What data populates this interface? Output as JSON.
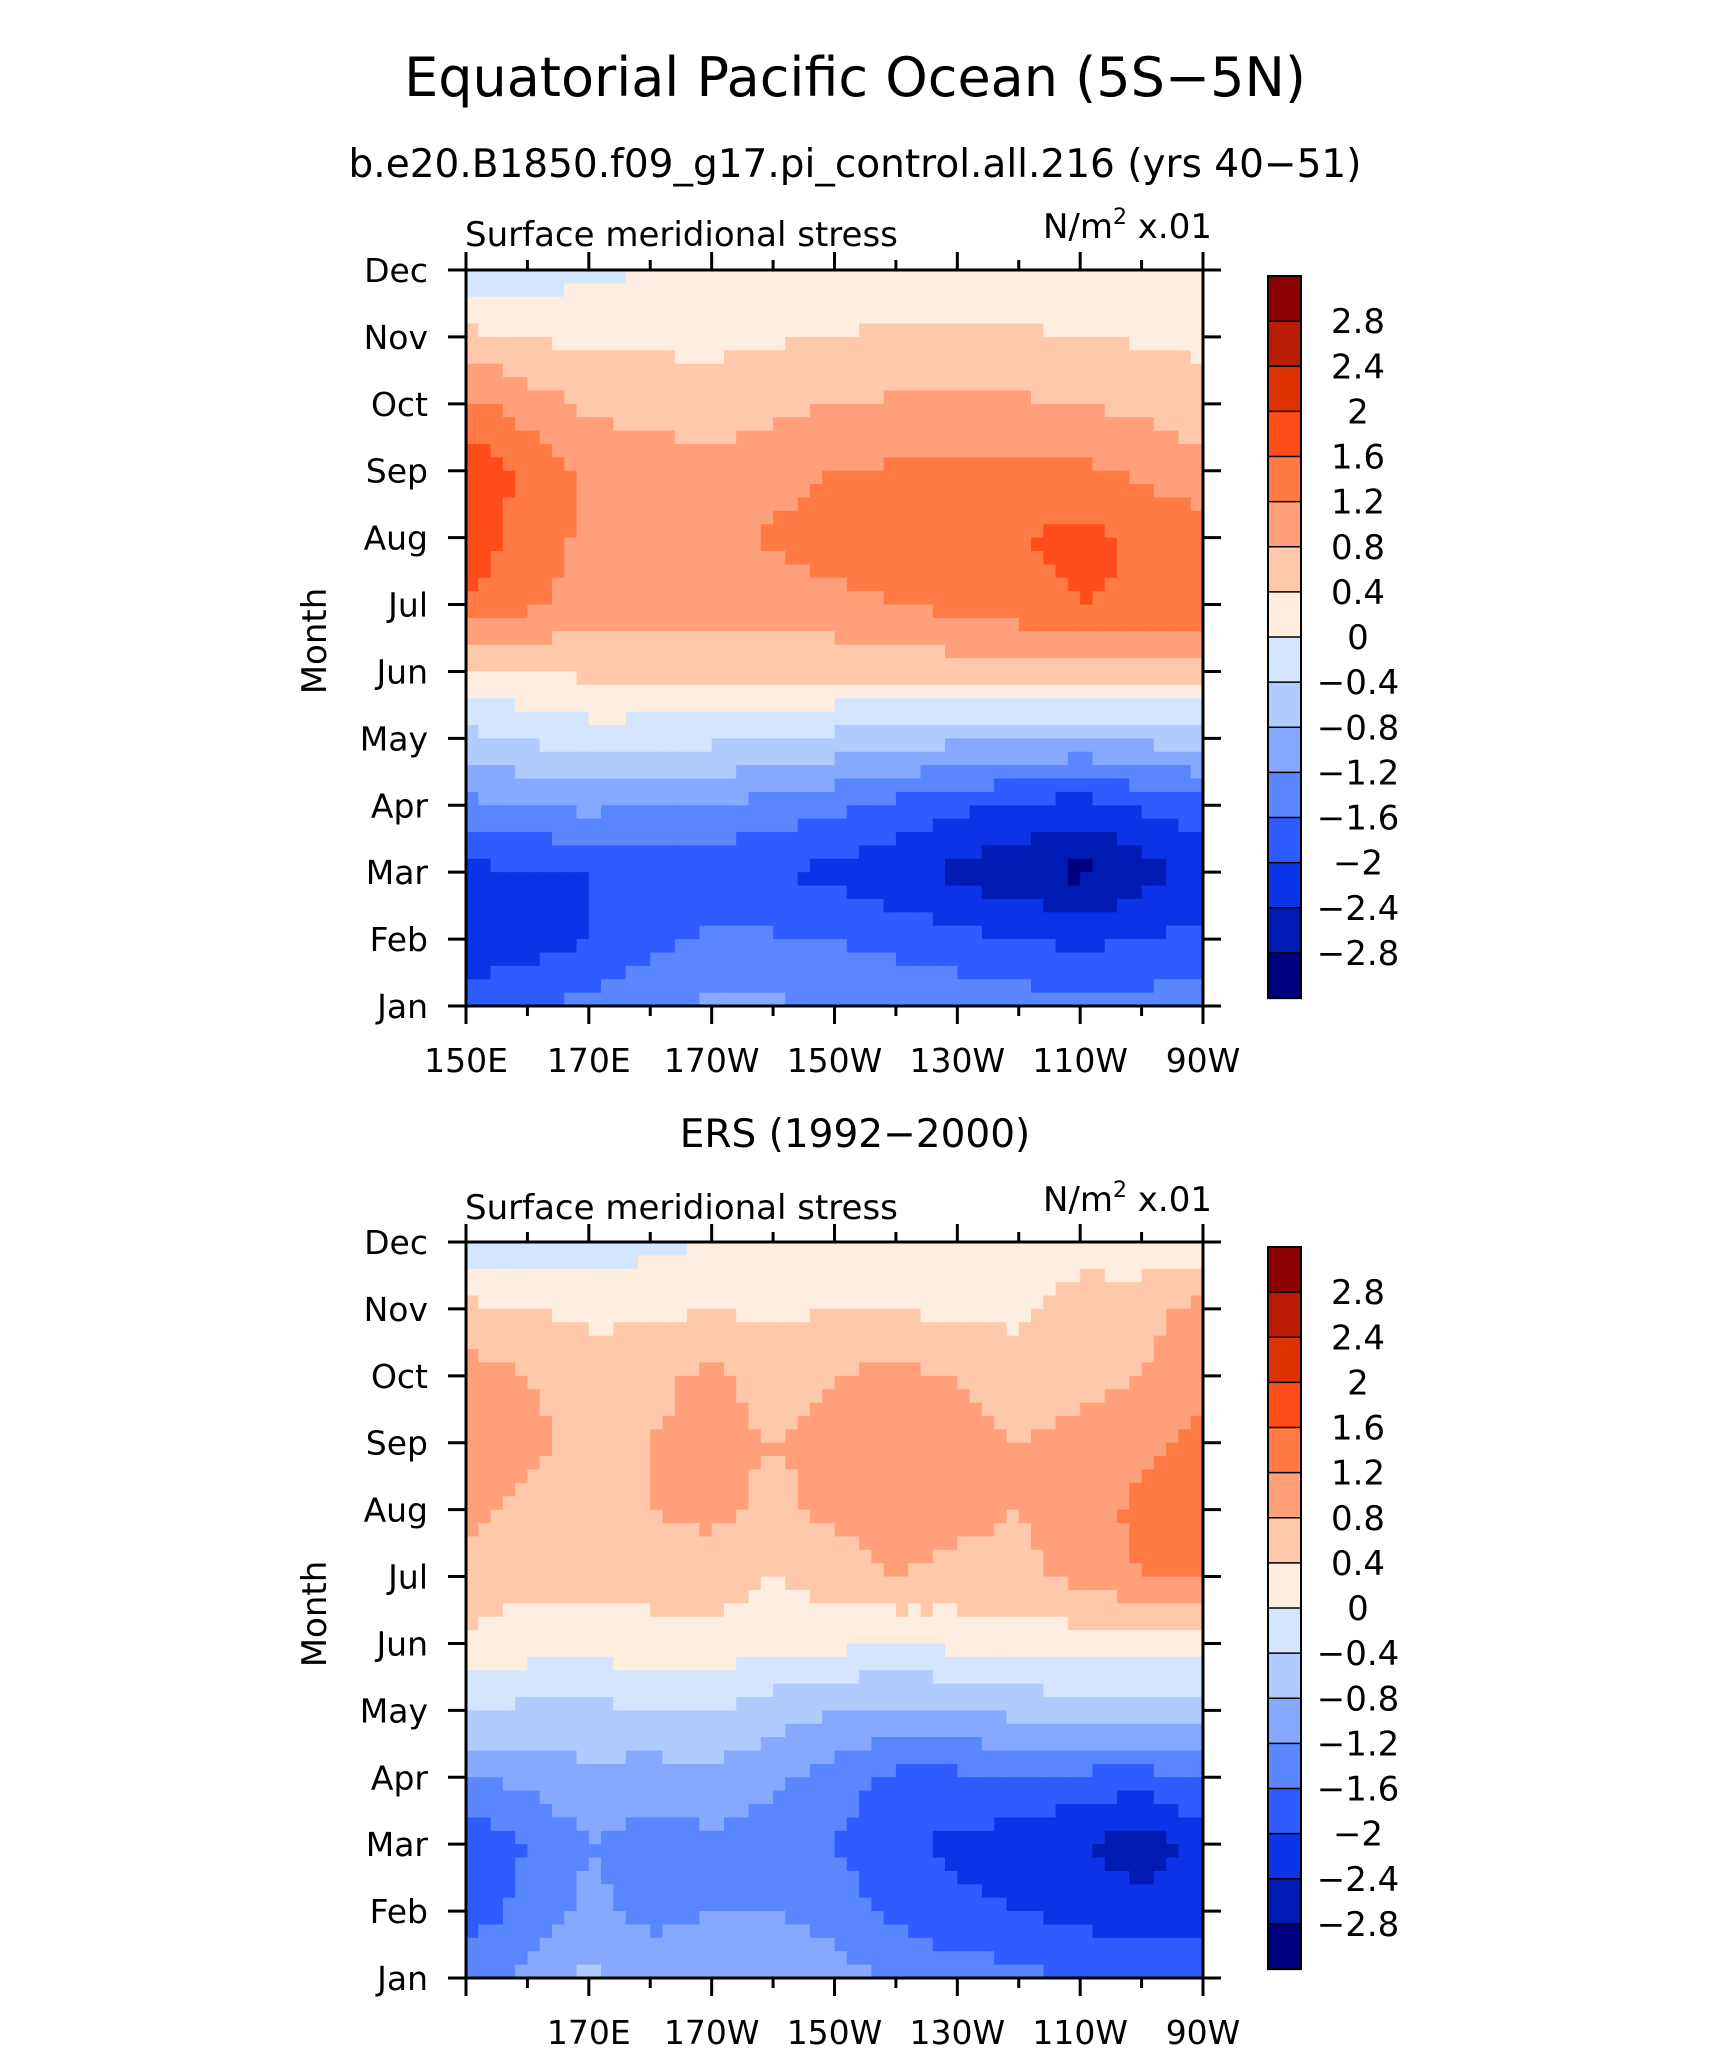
{
  "title": "Equatorial Pacific Ocean (5S−5N)",
  "chart_data": [
    {
      "type": "heatmap",
      "panel": "top",
      "title": "b.e20.B1850.f09_g17.pi_control.all.216 (yrs 40−51)",
      "left_string": "Surface meridional stress",
      "units_string": "N/m",
      "units_superscript": "2",
      "units_scale": " x.01",
      "ylabel": "Month",
      "xlabel": "",
      "x_tick_labels": [
        "150E",
        "170E",
        "170W",
        "150W",
        "130W",
        "110W",
        "90W"
      ],
      "y_tick_labels": [
        "Jan",
        "Feb",
        "Mar",
        "Apr",
        "May",
        "Jun",
        "Jul",
        "Aug",
        "Sep",
        "Oct",
        "Nov",
        "Dec"
      ],
      "x_range_deg_east": [
        150,
        270
      ],
      "x_minor_step": 10,
      "x_label_step": 20,
      "x_bottom_labels_from": 150,
      "contour_levels": [
        -2.8,
        -2.4,
        -2,
        -1.6,
        -1.2,
        -0.8,
        -0.4,
        0,
        0.4,
        0.8,
        1.2,
        1.6,
        2,
        2.4,
        2.8
      ],
      "lon": [
        150,
        170,
        190,
        210,
        230,
        250,
        270
      ],
      "values": [
        [
          -1.7,
          -1.5,
          -1.1,
          -1.2,
          -1.3,
          -1.5,
          -1.4
        ],
        [
          -2.4,
          -2.0,
          -1.5,
          -1.6,
          -1.9,
          -2.1,
          -1.9
        ],
        [
          -2.1,
          -2.0,
          -1.9,
          -2.1,
          -2.5,
          -2.9,
          -2.3
        ],
        [
          -1.3,
          -1.1,
          -1.2,
          -1.5,
          -1.9,
          -2.2,
          -1.7
        ],
        [
          -0.5,
          -0.2,
          -0.3,
          -0.5,
          -0.7,
          -0.8,
          -0.6
        ],
        [
          0.3,
          0.5,
          0.6,
          0.5,
          0.6,
          0.7,
          0.6
        ],
        [
          1.6,
          1.0,
          0.9,
          1.1,
          1.3,
          1.6,
          1.5
        ],
        [
          1.8,
          1.1,
          1.1,
          1.4,
          1.5,
          1.7,
          1.4
        ],
        [
          1.9,
          1.1,
          0.9,
          1.2,
          1.3,
          1.3,
          0.9
        ],
        [
          1.3,
          0.7,
          0.6,
          0.8,
          0.9,
          0.8,
          0.6
        ],
        [
          0.5,
          0.3,
          0.3,
          0.4,
          0.5,
          0.4,
          0.3
        ],
        [
          -0.3,
          -0.1,
          0.1,
          0.2,
          0.1,
          0.1,
          0.0
        ]
      ]
    },
    {
      "type": "heatmap",
      "panel": "bottom",
      "title": "ERS (1992−2000)",
      "left_string": "Surface meridional stress",
      "units_string": "N/m",
      "units_superscript": "2",
      "units_scale": " x.01",
      "ylabel": "Month",
      "xlabel": "",
      "x_tick_labels": [
        "170E",
        "170W",
        "150W",
        "130W",
        "110W",
        "90W"
      ],
      "y_tick_labels": [
        "Jan",
        "Feb",
        "Mar",
        "Apr",
        "May",
        "Jun",
        "Jul",
        "Aug",
        "Sep",
        "Oct",
        "Nov",
        "Dec"
      ],
      "x_range_deg_east": [
        150,
        270
      ],
      "x_minor_step": 10,
      "x_label_step": 20,
      "x_bottom_labels_from": 170,
      "contour_levels": [
        -2.8,
        -2.4,
        -2,
        -1.6,
        -1.2,
        -0.8,
        -0.4,
        0,
        0.4,
        0.8,
        1.2,
        1.6,
        2,
        2.4,
        2.8
      ],
      "lon": [
        150,
        160,
        170,
        180,
        190,
        200,
        210,
        220,
        230,
        240,
        250,
        260,
        270
      ],
      "values": [
        [
          -1.3,
          -1.1,
          -0.7,
          -1.0,
          -0.9,
          -0.8,
          -1.0,
          -1.3,
          -1.4,
          -1.5,
          -1.6,
          -1.7,
          -1.6
        ],
        [
          -1.8,
          -1.5,
          -1.1,
          -1.3,
          -1.2,
          -1.2,
          -1.4,
          -1.7,
          -1.9,
          -2.0,
          -2.1,
          -2.3,
          -2.2
        ],
        [
          -1.9,
          -1.6,
          -1.2,
          -1.4,
          -1.3,
          -1.4,
          -1.6,
          -1.9,
          -2.1,
          -2.2,
          -2.4,
          -2.6,
          -2.3
        ],
        [
          -1.2,
          -1.1,
          -0.9,
          -1.0,
          -0.9,
          -1.1,
          -1.4,
          -1.7,
          -1.7,
          -1.6,
          -1.7,
          -1.8,
          -1.5
        ],
        [
          -0.4,
          -0.5,
          -0.5,
          -0.4,
          -0.4,
          -0.6,
          -0.8,
          -0.9,
          -0.8,
          -0.7,
          -0.6,
          -0.6,
          -0.5
        ],
        [
          0.3,
          0.2,
          0.2,
          0.2,
          0.3,
          0.1,
          0.1,
          0.0,
          0.1,
          0.2,
          0.2,
          0.1,
          0.2
        ],
        [
          0.7,
          0.5,
          0.5,
          0.6,
          0.6,
          0.4,
          0.6,
          0.8,
          0.7,
          0.7,
          0.9,
          1.2,
          1.2
        ],
        [
          0.9,
          0.7,
          0.6,
          0.8,
          0.9,
          0.7,
          0.9,
          1.0,
          0.9,
          0.8,
          1.0,
          1.3,
          1.4
        ],
        [
          1.2,
          0.9,
          0.7,
          0.8,
          0.9,
          0.8,
          0.9,
          1.0,
          0.9,
          0.8,
          0.9,
          1.1,
          1.3
        ],
        [
          1.0,
          0.8,
          0.6,
          0.7,
          0.9,
          0.6,
          0.8,
          0.9,
          0.8,
          0.6,
          0.7,
          0.8,
          1.1
        ],
        [
          0.5,
          0.4,
          0.3,
          0.3,
          0.4,
          0.3,
          0.4,
          0.4,
          0.3,
          0.3,
          0.6,
          0.7,
          0.9
        ],
        [
          -0.3,
          -0.2,
          -0.2,
          -0.1,
          0.0,
          0.0,
          0.1,
          0.1,
          0.2,
          0.1,
          0.2,
          0.1,
          0.2
        ]
      ]
    }
  ],
  "colorbar": {
    "labels": [
      "2.8",
      "2.4",
      "2",
      "1.6",
      "1.2",
      "0.8",
      "0.4",
      "0",
      "−0.4",
      "−0.8",
      "−1.2",
      "−1.6",
      "−2",
      "−2.4",
      "−2.8"
    ],
    "colors": [
      "#8b0000",
      "#b81d04",
      "#de3300",
      "#ff4d1a",
      "#ff7a45",
      "#ffa07a",
      "#ffc8aa",
      "#ffeedf",
      "#d4e6ff",
      "#b0ccff",
      "#86a8ff",
      "#5a86ff",
      "#2e5cff",
      "#0a34e6",
      "#001ab4",
      "#000080"
    ]
  }
}
